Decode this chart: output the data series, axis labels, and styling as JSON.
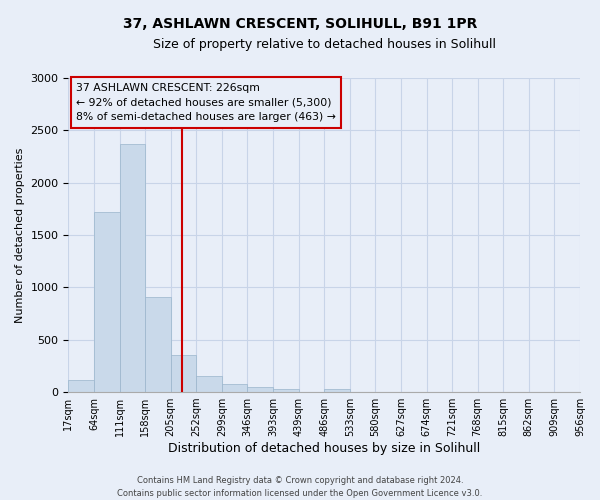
{
  "title": "37, ASHLAWN CRESCENT, SOLIHULL, B91 1PR",
  "subtitle": "Size of property relative to detached houses in Solihull",
  "xlabel": "Distribution of detached houses by size in Solihull",
  "ylabel": "Number of detached properties",
  "bar_values": [
    120,
    1720,
    2370,
    910,
    350,
    155,
    80,
    50,
    30,
    0,
    25,
    0,
    0,
    0,
    0,
    0,
    0,
    0,
    0,
    0
  ],
  "bin_labels": [
    "17sqm",
    "64sqm",
    "111sqm",
    "158sqm",
    "205sqm",
    "252sqm",
    "299sqm",
    "346sqm",
    "393sqm",
    "439sqm",
    "486sqm",
    "533sqm",
    "580sqm",
    "627sqm",
    "674sqm",
    "721sqm",
    "768sqm",
    "815sqm",
    "862sqm",
    "909sqm",
    "956sqm"
  ],
  "bar_color": "#c9d9ea",
  "bar_edge_color": "#9ab5cc",
  "vline_color": "#cc0000",
  "annotation_line1": "37 ASHLAWN CRESCENT: 226sqm",
  "annotation_line2": "← 92% of detached houses are smaller (5,300)",
  "annotation_line3": "8% of semi-detached houses are larger (463) →",
  "ylim": [
    0,
    3000
  ],
  "yticks": [
    0,
    500,
    1000,
    1500,
    2000,
    2500,
    3000
  ],
  "grid_color": "#c8d4e8",
  "background_color": "#e8eef8",
  "plot_bg_color": "#e8eef8",
  "footer_line1": "Contains HM Land Registry data © Crown copyright and database right 2024.",
  "footer_line2": "Contains public sector information licensed under the Open Government Licence v3.0.",
  "title_fontsize": 10,
  "subtitle_fontsize": 9,
  "xlabel_fontsize": 9,
  "ylabel_fontsize": 8,
  "tick_fontsize": 7,
  "footer_fontsize": 6
}
